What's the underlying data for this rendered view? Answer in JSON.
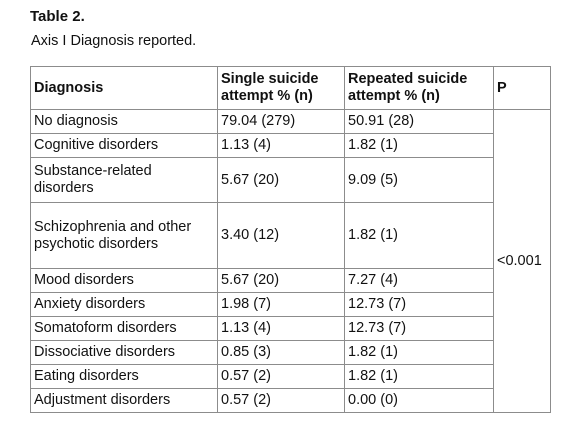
{
  "table": {
    "label": "Table 2.",
    "caption": "Axis I Diagnosis reported.",
    "headers": {
      "diagnosis": "Diagnosis",
      "single": "Single suicide attempt % (n)",
      "repeated": "Repeated suicide attempt % (n)",
      "p": "P"
    },
    "p_value": "<0.001",
    "rows": [
      {
        "diagnosis": "No diagnosis",
        "single": "79.04 (279)",
        "repeated": "50.91 (28)"
      },
      {
        "diagnosis": "Cognitive disorders",
        "single": "1.13 (4)",
        "repeated": "1.82 (1)"
      },
      {
        "diagnosis": "Substance-related disorders",
        "single": "5.67 (20)",
        "repeated": "9.09 (5)"
      },
      {
        "diagnosis": "Schizophrenia and other psychotic disorders",
        "single": "3.40 (12)",
        "repeated": "1.82 (1)"
      },
      {
        "diagnosis": "Mood disorders",
        "single": "5.67 (20)",
        "repeated": "7.27 (4)"
      },
      {
        "diagnosis": "Anxiety disorders",
        "single": "1.98 (7)",
        "repeated": "12.73 (7)"
      },
      {
        "diagnosis": "Somatoform disorders",
        "single": "1.13 (4)",
        "repeated": "12.73 (7)"
      },
      {
        "diagnosis": "Dissociative disorders",
        "single": "0.85 (3)",
        "repeated": "1.82 (1)"
      },
      {
        "diagnosis": "Eating disorders",
        "single": "0.57 (2)",
        "repeated": "1.82 (1)"
      },
      {
        "diagnosis": "Adjustment disorders",
        "single": "0.57 (2)",
        "repeated": "0.00 (0)"
      }
    ]
  }
}
